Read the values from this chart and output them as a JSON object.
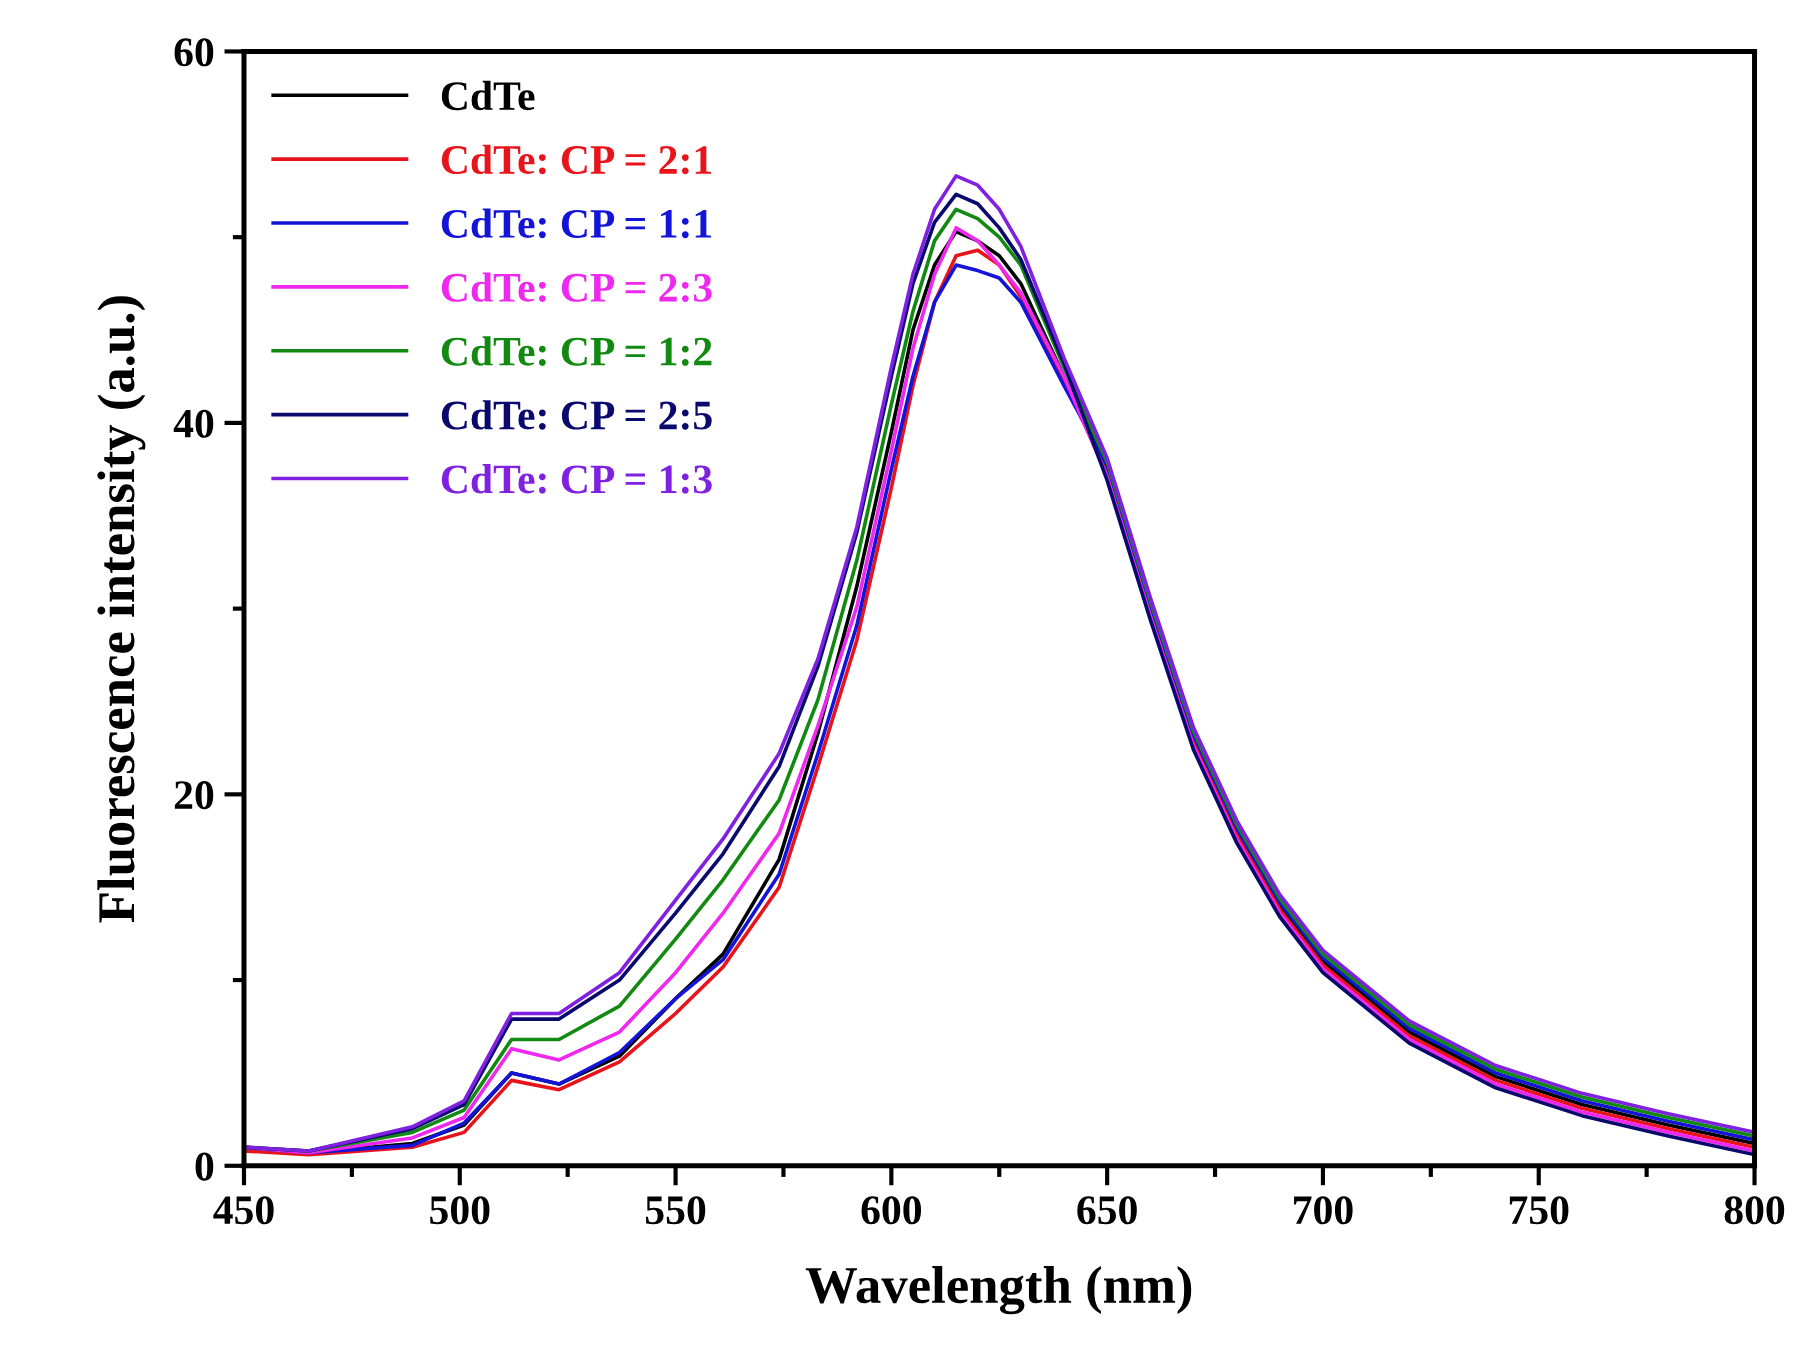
{
  "chart_data": {
    "type": "line",
    "xlabel": "Wavelength (nm)",
    "ylabel": "Fluorescence intensity (a.u.)",
    "x": [
      450,
      465,
      489,
      501,
      512,
      523,
      537,
      550,
      561,
      574,
      583,
      592,
      600,
      605,
      610,
      615,
      620,
      625,
      630,
      640,
      650,
      660,
      670,
      680,
      690,
      700,
      720,
      740,
      760,
      780,
      800
    ],
    "xlim": [
      450,
      800
    ],
    "ylim": [
      0,
      60
    ],
    "xticks": [
      450,
      {
        "value": 475,
        "label": null
      },
      500,
      {
        "value": 525,
        "label": null
      },
      550,
      {
        "value": 575,
        "label": null
      },
      600,
      {
        "value": 625,
        "label": null
      },
      650,
      {
        "value": 675,
        "label": null
      },
      700,
      {
        "value": 725,
        "label": null
      },
      750,
      {
        "value": 775,
        "label": null
      },
      800
    ],
    "yticks": [
      0,
      {
        "value": 10,
        "label": null
      },
      20,
      {
        "value": 30,
        "label": null
      },
      40,
      {
        "value": 50,
        "label": null
      },
      60
    ],
    "grid": false,
    "legend": "top left",
    "line_style": "solid",
    "marker": "none",
    "series": [
      {
        "name": "CdTe",
        "color": "#000000",
        "values": [
          1.0,
          0.7,
          1.2,
          2.2,
          5.0,
          4.4,
          5.9,
          9.0,
          11.4,
          16.5,
          23.3,
          31.2,
          39.5,
          45,
          48.5,
          50.3,
          49.8,
          49,
          47.5,
          42.5,
          37.5,
          30,
          23,
          18,
          14,
          11,
          7.2,
          4.8,
          3.3,
          2.2,
          1.2
        ]
      },
      {
        "name": "CdTe: CP = 2:1",
        "color": "#e8141c",
        "values": [
          0.8,
          0.6,
          1.0,
          1.8,
          4.6,
          4.1,
          5.6,
          8.2,
          10.7,
          15.0,
          21.5,
          28.3,
          36.5,
          42,
          46.5,
          49,
          49.3,
          48.5,
          46.8,
          42.3,
          37.3,
          29.8,
          22.8,
          17.8,
          13.8,
          10.8,
          7.0,
          4.6,
          3.1,
          2.0,
          1.0
        ]
      },
      {
        "name": "CdTe: CP = 1:1",
        "color": "#1414d8",
        "values": [
          1.0,
          0.7,
          1.1,
          2.3,
          5.0,
          4.4,
          6.1,
          9.0,
          11.1,
          15.7,
          22.2,
          29.1,
          37.5,
          42.5,
          46.5,
          48.5,
          48.2,
          47.8,
          46.5,
          42,
          37.7,
          30.2,
          23.2,
          18.2,
          14.2,
          11.2,
          7.4,
          5.0,
          3.5,
          2.4,
          1.4
        ]
      },
      {
        "name": "CdTe: CP = 2:3",
        "color": "#ee28ee",
        "values": [
          1.0,
          0.7,
          1.5,
          2.6,
          6.3,
          5.7,
          7.2,
          10.4,
          13.6,
          17.9,
          23.7,
          30.1,
          38.5,
          44,
          48,
          50.5,
          49.8,
          48.5,
          47,
          42.5,
          37.1,
          29.6,
          22.6,
          17.6,
          13.6,
          10.6,
          6.8,
          4.4,
          2.9,
          1.8,
          0.8
        ]
      },
      {
        "name": "CdTe: CP = 1:2",
        "color": "#128a12",
        "values": [
          1.0,
          0.8,
          1.8,
          3.0,
          6.8,
          6.8,
          8.6,
          12.2,
          15.4,
          19.7,
          25.1,
          32.6,
          41,
          46,
          49.8,
          51.5,
          51,
          50,
          48.5,
          43,
          37.9,
          30.4,
          23.4,
          18.4,
          14.4,
          11.4,
          7.6,
          5.2,
          3.7,
          2.6,
          1.6
        ]
      },
      {
        "name": "CdTe: CP = 2:5",
        "color": "#0a0a6e",
        "values": [
          1.0,
          0.8,
          2.0,
          3.3,
          7.9,
          7.9,
          10.0,
          13.6,
          16.8,
          21.5,
          26.9,
          34.1,
          42.5,
          47.5,
          50.8,
          52.3,
          51.8,
          50.5,
          48.8,
          43.2,
          36.9,
          29.4,
          22.4,
          17.4,
          13.4,
          10.4,
          6.6,
          4.2,
          2.7,
          1.6,
          0.6
        ]
      },
      {
        "name": "CdTe: CP = 1:3",
        "color": "#8020e0",
        "values": [
          1.0,
          0.8,
          2.1,
          3.5,
          8.2,
          8.2,
          10.4,
          14.3,
          17.6,
          22.2,
          27.3,
          34.4,
          43,
          48,
          51.5,
          53.3,
          52.8,
          51.5,
          49.5,
          43.5,
          38.1,
          30.6,
          23.6,
          18.6,
          14.6,
          11.6,
          7.8,
          5.4,
          3.9,
          2.8,
          1.8
        ]
      }
    ]
  }
}
